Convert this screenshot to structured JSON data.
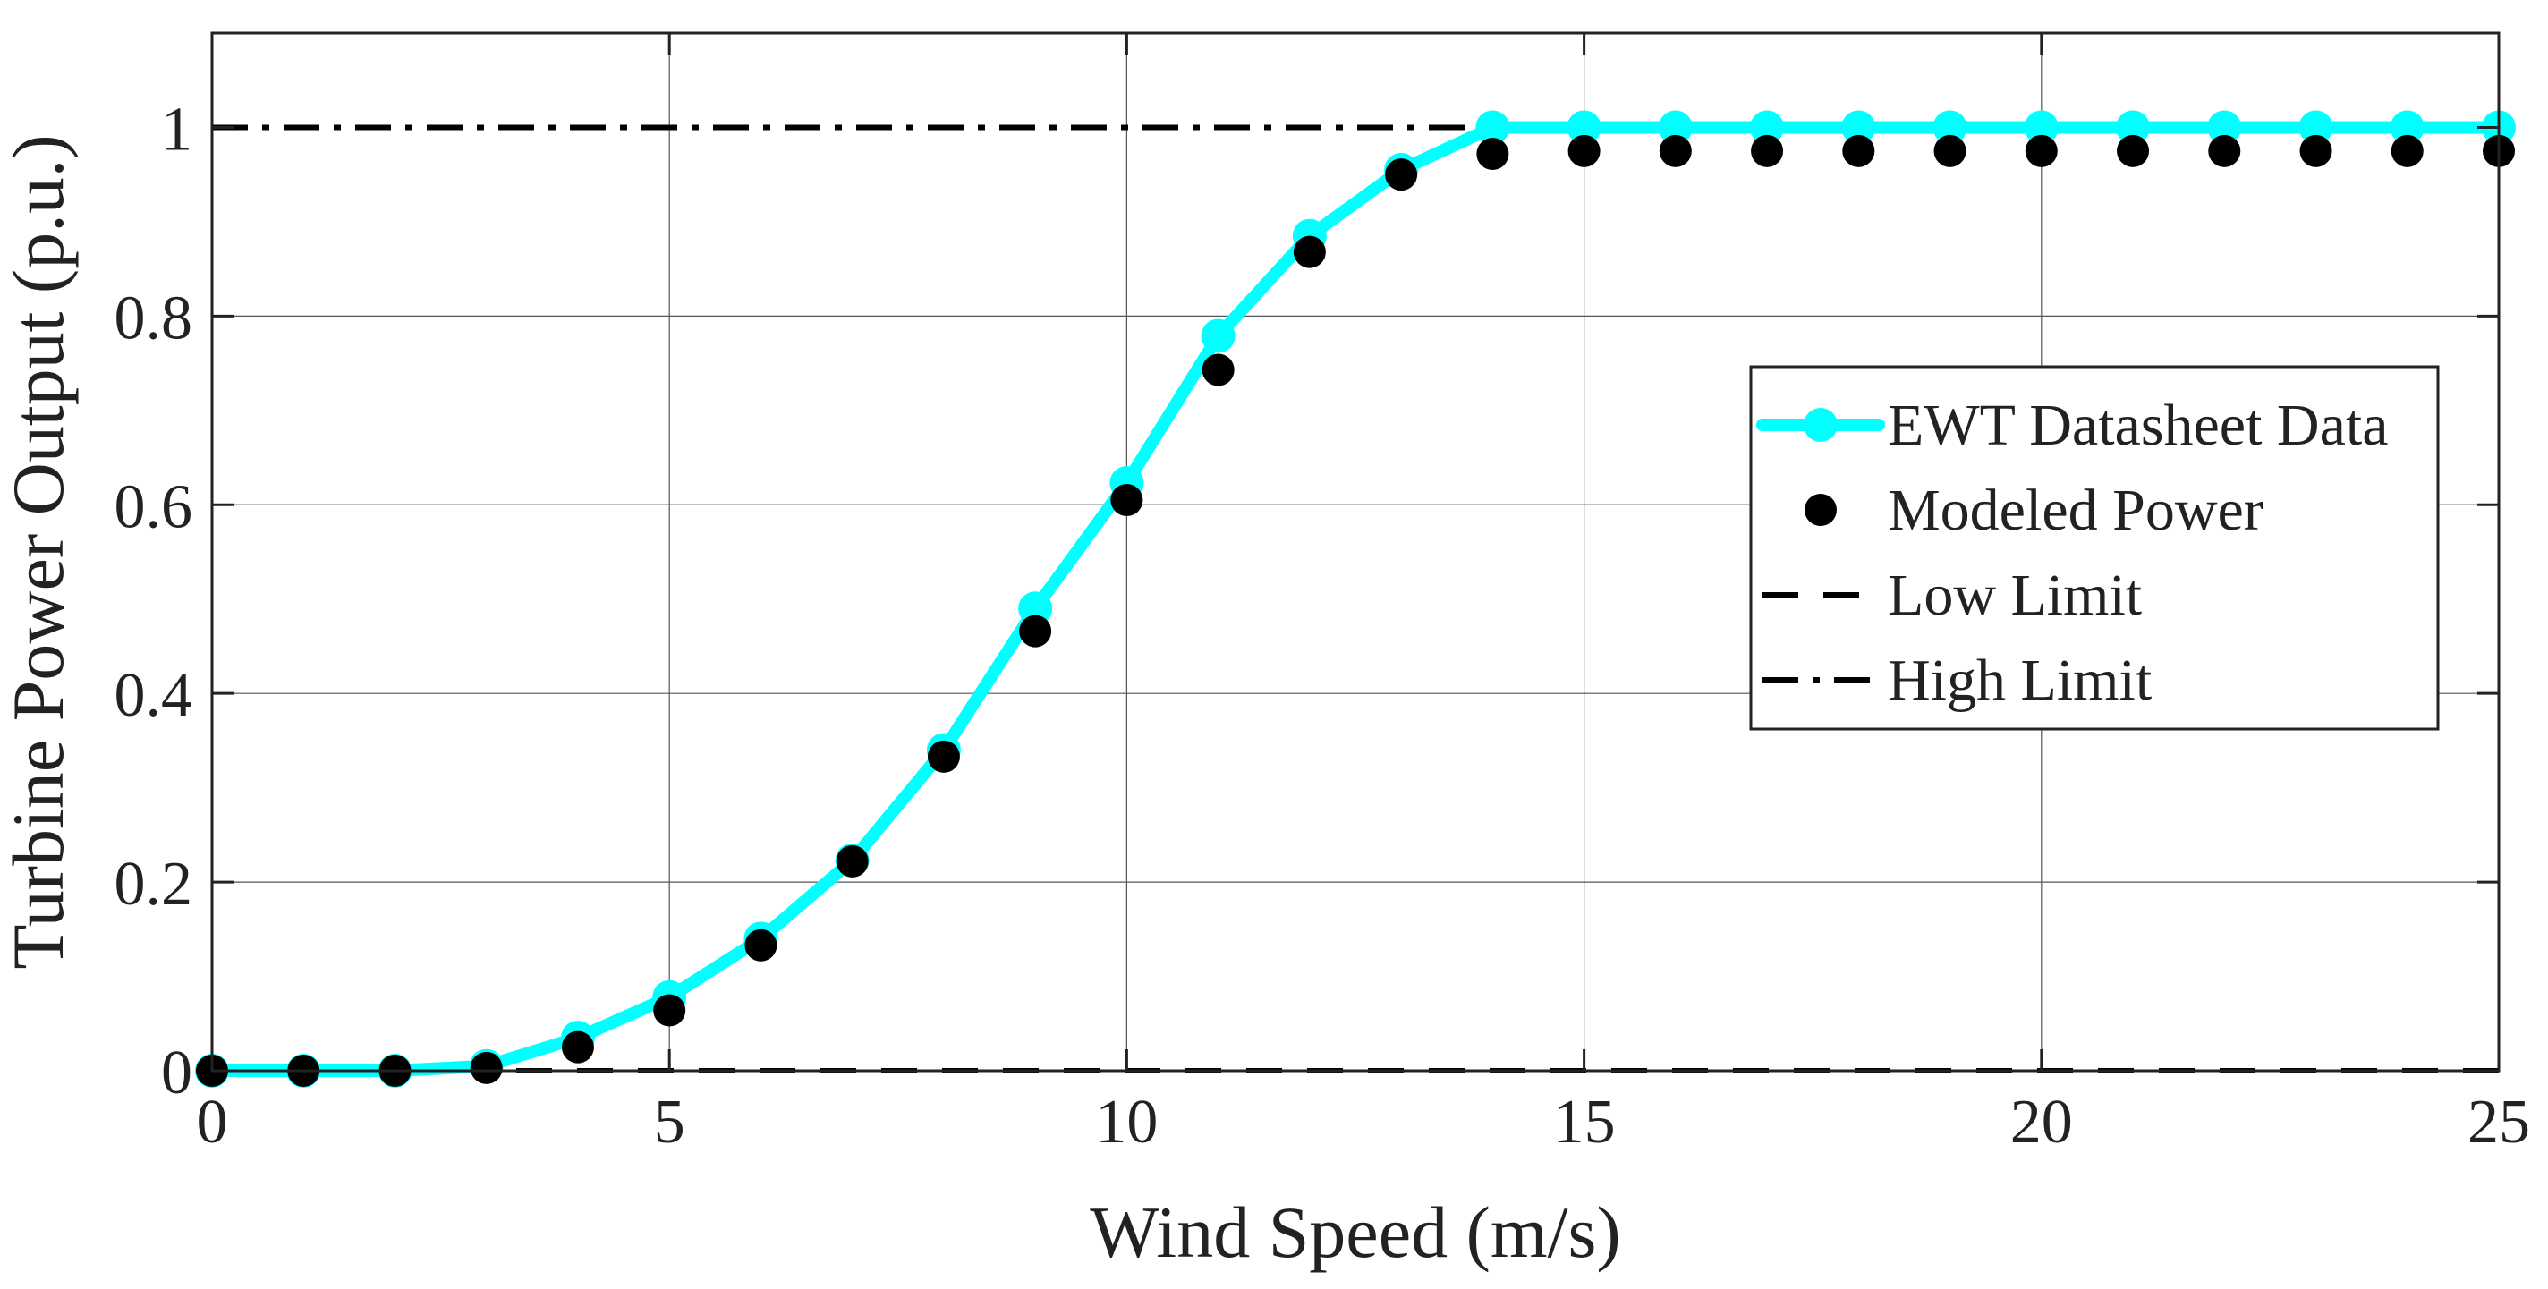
{
  "chart_data": {
    "type": "line",
    "title": "",
    "xlabel": "Wind Speed (m/s)",
    "ylabel": "Turbine Power Output (p.u.)",
    "xlim": [
      0,
      25
    ],
    "ylim": [
      0,
      1.1
    ],
    "xticks": [
      0,
      5,
      10,
      15,
      20,
      25
    ],
    "yticks": [
      0,
      0.2,
      0.4,
      0.6,
      0.8,
      1
    ],
    "xtick_labels": [
      "0",
      "5",
      "10",
      "15",
      "20",
      "25"
    ],
    "ytick_labels": [
      "0",
      "0.2",
      "0.4",
      "0.6",
      "0.8",
      "1"
    ],
    "grid": "partial",
    "legend_position": "right",
    "series": [
      {
        "name": "EWT Datasheet Data",
        "style": "line-with-markers",
        "color": "#00ffff",
        "x": [
          0,
          1,
          2,
          3,
          4,
          5,
          6,
          7,
          8,
          9,
          10,
          11,
          12,
          13,
          14,
          15,
          16,
          17,
          18,
          19,
          20,
          21,
          22,
          23,
          24,
          25
        ],
        "y": [
          0,
          0,
          0,
          0.005,
          0.035,
          0.078,
          0.14,
          0.223,
          0.34,
          0.49,
          0.623,
          0.779,
          0.885,
          0.955,
          1,
          1,
          1,
          1,
          1,
          1,
          1,
          1,
          1,
          1,
          1,
          1
        ]
      },
      {
        "name": "Modeled Power",
        "style": "markers",
        "color": "#000000",
        "x": [
          0,
          1,
          2,
          3,
          4,
          5,
          6,
          7,
          8,
          9,
          10,
          11,
          12,
          13,
          14,
          15,
          16,
          17,
          18,
          19,
          20,
          21,
          22,
          23,
          24,
          25
        ],
        "y": [
          0,
          0,
          0,
          0.003,
          0.025,
          0.064,
          0.133,
          0.222,
          0.333,
          0.466,
          0.605,
          0.743,
          0.868,
          0.95,
          0.972,
          0.975,
          0.975,
          0.975,
          0.975,
          0.975,
          0.975,
          0.975,
          0.975,
          0.975,
          0.975,
          0.975
        ]
      },
      {
        "name": "Low Limit",
        "style": "dashed",
        "color": "#000000",
        "x": [
          0,
          25
        ],
        "y": [
          0,
          0
        ]
      },
      {
        "name": "High Limit",
        "style": "dash-dot",
        "color": "#000000",
        "x": [
          0,
          25
        ],
        "y": [
          1,
          1
        ]
      }
    ]
  }
}
